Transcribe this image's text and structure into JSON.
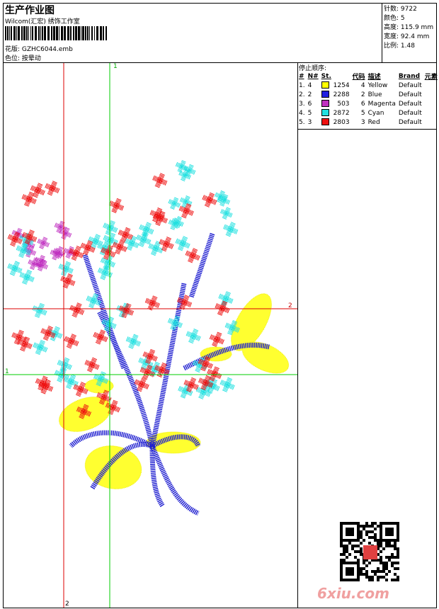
{
  "header": {
    "title": "生产作业图",
    "studio": "Wilcom(汇宏) 绣饰工作室",
    "design_label": "花版:",
    "design_file": "GZHC6044.emb",
    "color_label": "色位:",
    "color_value": "按晕动"
  },
  "stats": [
    {
      "label": "针数:",
      "value": "9722"
    },
    {
      "label": "颜色:",
      "value": "5"
    },
    {
      "label": "高度:",
      "value": "115.9 mm"
    },
    {
      "label": "宽度:",
      "value": "92.4 mm"
    },
    {
      "label": "比例:",
      "value": "1.48"
    }
  ],
  "stop_sequence": {
    "title": "停止顺序:",
    "columns": [
      "#",
      "N#",
      "St.",
      "代码",
      "描述",
      "Brand",
      "元素"
    ],
    "rows": [
      {
        "seq": "1.",
        "needle": 4,
        "color": "#ffff00",
        "stitches": 1254,
        "code": 4,
        "desc": "Yellow",
        "brand": "Default"
      },
      {
        "seq": "2.",
        "needle": 2,
        "color": "#2020e0",
        "stitches": 2288,
        "code": 2,
        "desc": "Blue",
        "brand": "Default"
      },
      {
        "seq": "3.",
        "needle": 6,
        "color": "#c030c0",
        "stitches": 503,
        "code": 6,
        "desc": "Magenta",
        "brand": "Default"
      },
      {
        "seq": "4.",
        "needle": 5,
        "color": "#20e0e0",
        "stitches": 2872,
        "code": 5,
        "desc": "Cyan",
        "brand": "Default"
      },
      {
        "seq": "5.",
        "needle": 3,
        "color": "#ee1010",
        "stitches": 2803,
        "code": 3,
        "desc": "Red",
        "brand": "Default"
      }
    ]
  },
  "guides": {
    "green_label": "1",
    "red_label": "2"
  },
  "watermark": "6xiu.com"
}
